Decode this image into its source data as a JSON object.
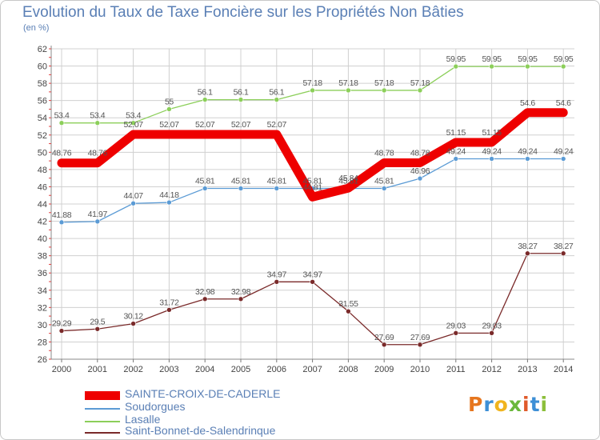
{
  "title": "Evolution du Taux de Taxe Foncière sur les Propriétés Non Bâties",
  "unit_label": "(en %)",
  "logo": {
    "text": "Proxiti",
    "colors": [
      "#e6761f",
      "#3d8fd6",
      "#f0b41e",
      "#6ab83c",
      "#e05a2a",
      "#3d8fd6",
      "#8cbf3a"
    ]
  },
  "chart_data": {
    "type": "line",
    "title": "Evolution du Taux de Taxe Foncière sur les Propriétés Non Bâties",
    "ylabel": "(en %)",
    "xlabel": "",
    "categories": [
      "2000",
      "2001",
      "2002",
      "2003",
      "2004",
      "2005",
      "2006",
      "2007",
      "2008",
      "2009",
      "2010",
      "2011",
      "2012",
      "2013",
      "2014"
    ],
    "ylim": [
      26,
      62
    ],
    "yticks": [
      26,
      28,
      30,
      32,
      34,
      36,
      38,
      40,
      42,
      44,
      46,
      48,
      50,
      52,
      54,
      56,
      58,
      60,
      62
    ],
    "grid": "horizontal",
    "series": [
      {
        "name": "SAINTE-CROIX-DE-CADERLE",
        "color": "#ee0000",
        "emphasis": true,
        "values": [
          48.76,
          48.76,
          52.07,
          52.07,
          52.07,
          52.07,
          52.07,
          44.81,
          45.84,
          48.78,
          48.78,
          51.15,
          51.15,
          54.6,
          54.6
        ],
        "labels": [
          "48.76",
          "48.76",
          "52.07",
          "52.07",
          "52.07",
          "52.07",
          "52.07",
          "44.81",
          "45.84",
          "48.78",
          "48.78",
          "51.15",
          "51.15",
          "54.6",
          "54.6"
        ]
      },
      {
        "name": "Soudorgues",
        "color": "#5b9bd5",
        "emphasis": false,
        "values": [
          41.88,
          41.97,
          44.07,
          44.18,
          45.81,
          45.81,
          45.81,
          45.81,
          45.81,
          45.81,
          46.96,
          49.24,
          49.24,
          49.24,
          49.24
        ],
        "labels": [
          "41.88",
          "41.97",
          "44.07",
          "44.18",
          "45.81",
          "45.81",
          "45.81",
          "45.81",
          "45.81",
          "45.81",
          "46.96",
          "49.24",
          "49.24",
          "49.24",
          "49.24"
        ]
      },
      {
        "name": "Lasalle",
        "color": "#8ccf5a",
        "emphasis": false,
        "values": [
          53.4,
          53.4,
          53.4,
          55,
          56.1,
          56.1,
          56.1,
          57.18,
          57.18,
          57.18,
          57.18,
          59.95,
          59.95,
          59.95,
          59.95
        ],
        "labels": [
          "53.4",
          "53.4",
          "53.4",
          "55",
          "56.1",
          "56.1",
          "56.1",
          "57.18",
          "57.18",
          "57.18",
          "57.18",
          "59.95",
          "59.95",
          "59.95",
          "59.95"
        ]
      },
      {
        "name": "Saint-Bonnet-de-Salendrinque",
        "color": "#7a2a2a",
        "emphasis": false,
        "values": [
          29.29,
          29.5,
          30.12,
          31.72,
          32.98,
          32.98,
          34.97,
          34.97,
          31.55,
          27.69,
          27.69,
          29.03,
          29.03,
          38.27,
          38.27
        ],
        "labels": [
          "29.29",
          "29.5",
          "30.12",
          "31.72",
          "32.98",
          "32.98",
          "34.97",
          "34.97",
          "31.55",
          "27.69",
          "27.69",
          "29.03",
          "29.03",
          "38.27",
          "38.27"
        ]
      }
    ],
    "legend_position": "bottom-left"
  }
}
